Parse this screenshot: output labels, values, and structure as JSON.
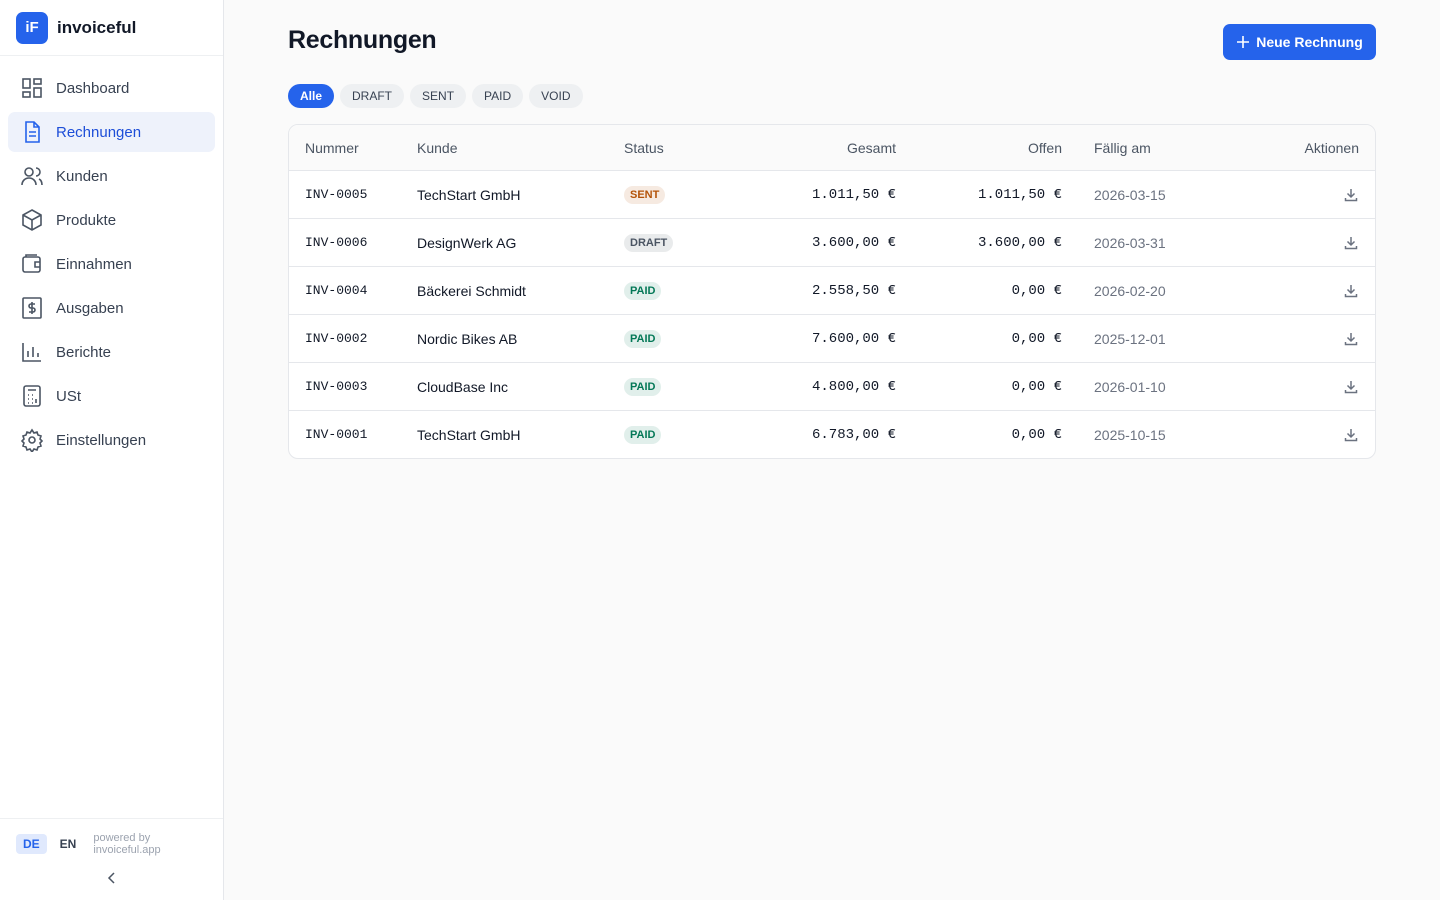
{
  "sidebar": {
    "logo_icon": "iF",
    "logo_text": "invoiceful",
    "nav": [
      "Dashboard",
      "Rechnungen",
      "Kunden",
      "Produkte",
      "Einnahmen",
      "Ausgaben",
      "Berichte",
      "USt",
      "Einstellungen"
    ],
    "languages": [
      "DE",
      "EN"
    ],
    "powered_by": "powered by invoiceful.app"
  },
  "header": {
    "title": "Rechnungen",
    "button": "Neue Rechnung"
  },
  "filters": [
    "Alle",
    "DRAFT",
    "SENT",
    "PAID",
    "VOID"
  ],
  "table": {
    "columns": [
      "Nummer",
      "Kunde",
      "Status",
      "Gesamt",
      "Offen",
      "Fällig am",
      "Aktionen"
    ],
    "rows": [
      [
        "INV-0005",
        "TechStart GmbH",
        "SENT",
        "1.011,50 €",
        "1.011,50 €",
        "2026-03-15"
      ],
      [
        "INV-0006",
        "DesignWerk AG",
        "DRAFT",
        "3.600,00 €",
        "3.600,00 €",
        "2026-03-31"
      ],
      [
        "INV-0004",
        "Bäckerei Schmidt",
        "PAID",
        "2.558,50 €",
        "0,00 €",
        "2026-02-20"
      ],
      [
        "INV-0002",
        "Nordic Bikes AB",
        "PAID",
        "7.600,00 €",
        "0,00 €",
        "2025-12-01"
      ],
      [
        "INV-0003",
        "CloudBase Inc",
        "PAID",
        "4.800,00 €",
        "0,00 €",
        "2026-01-10"
      ],
      [
        "INV-0001",
        "TechStart GmbH",
        "PAID",
        "6.783,00 €",
        "0,00 €",
        "2025-10-15"
      ]
    ],
    "status_colors": [
      "#b45309",
      "#4b5563",
      "#047857",
      "#047857",
      "#047857",
      "#047857"
    ]
  }
}
